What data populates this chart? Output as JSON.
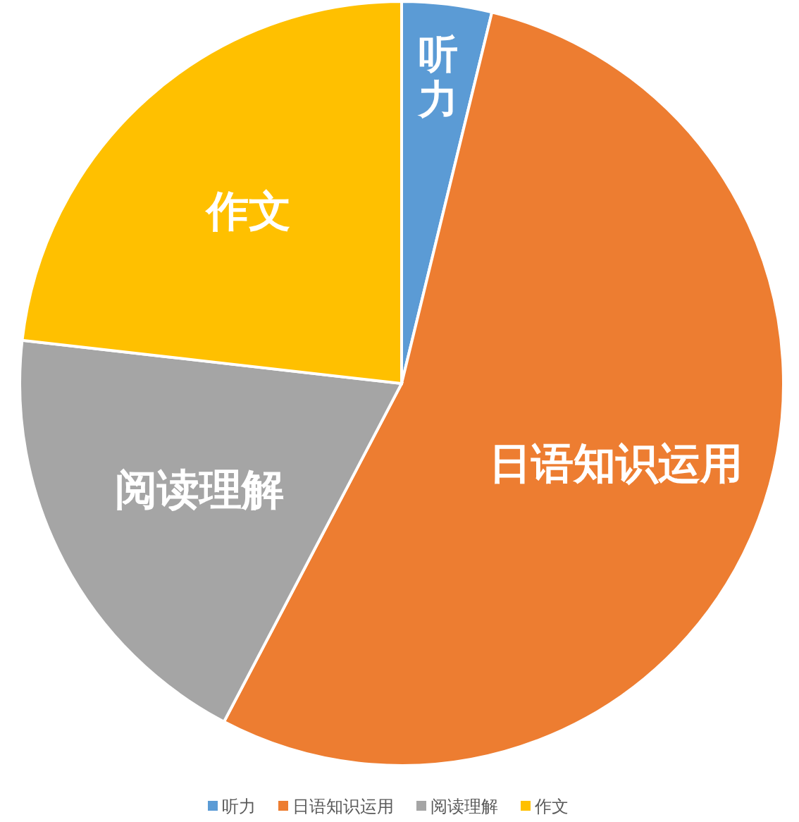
{
  "chart_data": {
    "type": "pie",
    "categories": [
      "听力",
      "日语知识运用",
      "阅读理解",
      "作文"
    ],
    "values": [
      3.8,
      53.9,
      19.1,
      23.2
    ],
    "colors": [
      "#5b9bd5",
      "#ed7d31",
      "#a5a5a5",
      "#ffc000"
    ],
    "legend": "bottom"
  }
}
